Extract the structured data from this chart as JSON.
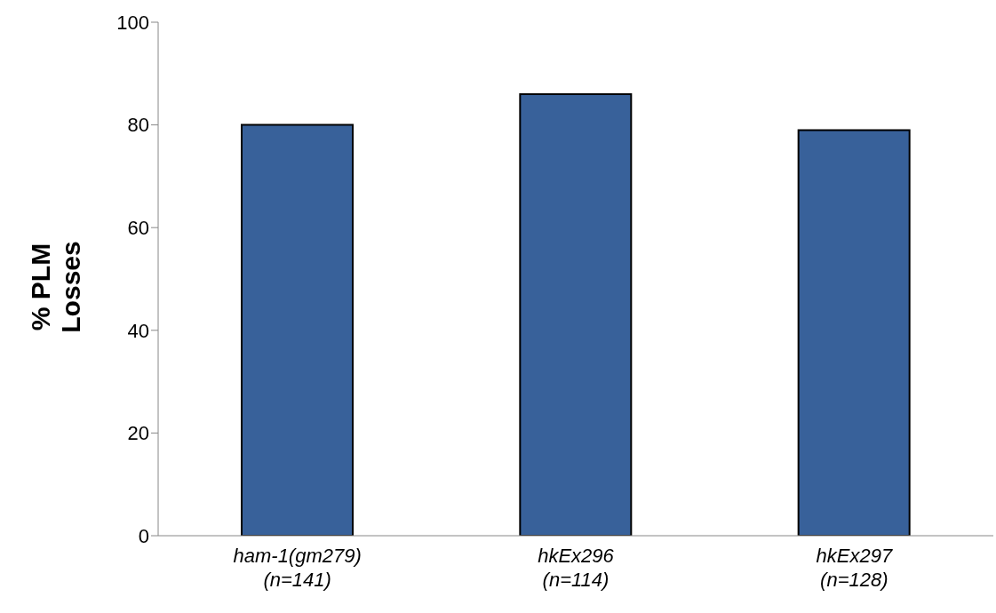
{
  "chart_data": {
    "type": "bar",
    "ylabel": "% PLM Losses",
    "categories": [
      "ham-1(gm279)\n(n=141)",
      "hkEx296\n(n=114)",
      "hkEx297\n(n=128)"
    ],
    "values": [
      80,
      86,
      79
    ],
    "color": "#38619a",
    "ylim": [
      0,
      100
    ],
    "yticks": [
      0,
      20,
      40,
      60,
      80,
      100
    ],
    "grid": false,
    "legend": false
  }
}
